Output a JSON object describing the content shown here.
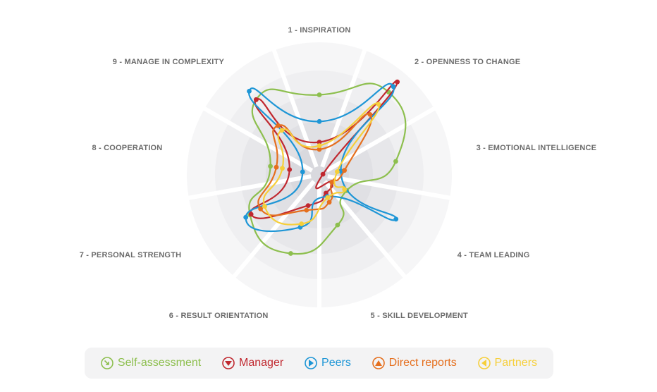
{
  "chart_data": {
    "type": "radar",
    "axes": [
      "1 - INSPIRATION",
      "2 - OPENNESS TO CHANGE",
      "3 - EMOTIONAL INTELLIGENCE",
      "4 - TEAM LEADING",
      "5 - SKILL DEVELOPMENT",
      "6 - RESULT ORIENTATION",
      "7 - PERSONAL STRENGTH",
      "8 - COOPERATION",
      "9 - MANAGE IN COMPLEXITY"
    ],
    "range": [
      0,
      1
    ],
    "series": [
      {
        "name": "Self-assessment",
        "color": "#8dbf4e",
        "values": [
          0.66,
          0.89,
          0.64,
          0.26,
          0.44,
          0.69,
          0.66,
          0.41,
          0.81
        ]
      },
      {
        "name": "Manager",
        "color": "#c0282f",
        "values": [
          0.27,
          1.0,
          0.03,
          0.12,
          0.16,
          0.27,
          0.65,
          0.25,
          0.81
        ]
      },
      {
        "name": "Peers",
        "color": "#1e96d6",
        "values": [
          0.44,
          0.95,
          0.18,
          0.73,
          0.19,
          0.46,
          0.7,
          0.14,
          0.9
        ]
      },
      {
        "name": "Direct reports",
        "color": "#e56f1e",
        "values": [
          0.21,
          0.65,
          0.21,
          0.12,
          0.24,
          0.31,
          0.56,
          0.36,
          0.53
        ]
      },
      {
        "name": "Partners",
        "color": "#f6cf3a",
        "values": [
          0.24,
          0.76,
          0.15,
          0.24,
          0.2,
          0.43,
          0.52,
          0.31,
          0.48
        ]
      }
    ]
  }
}
